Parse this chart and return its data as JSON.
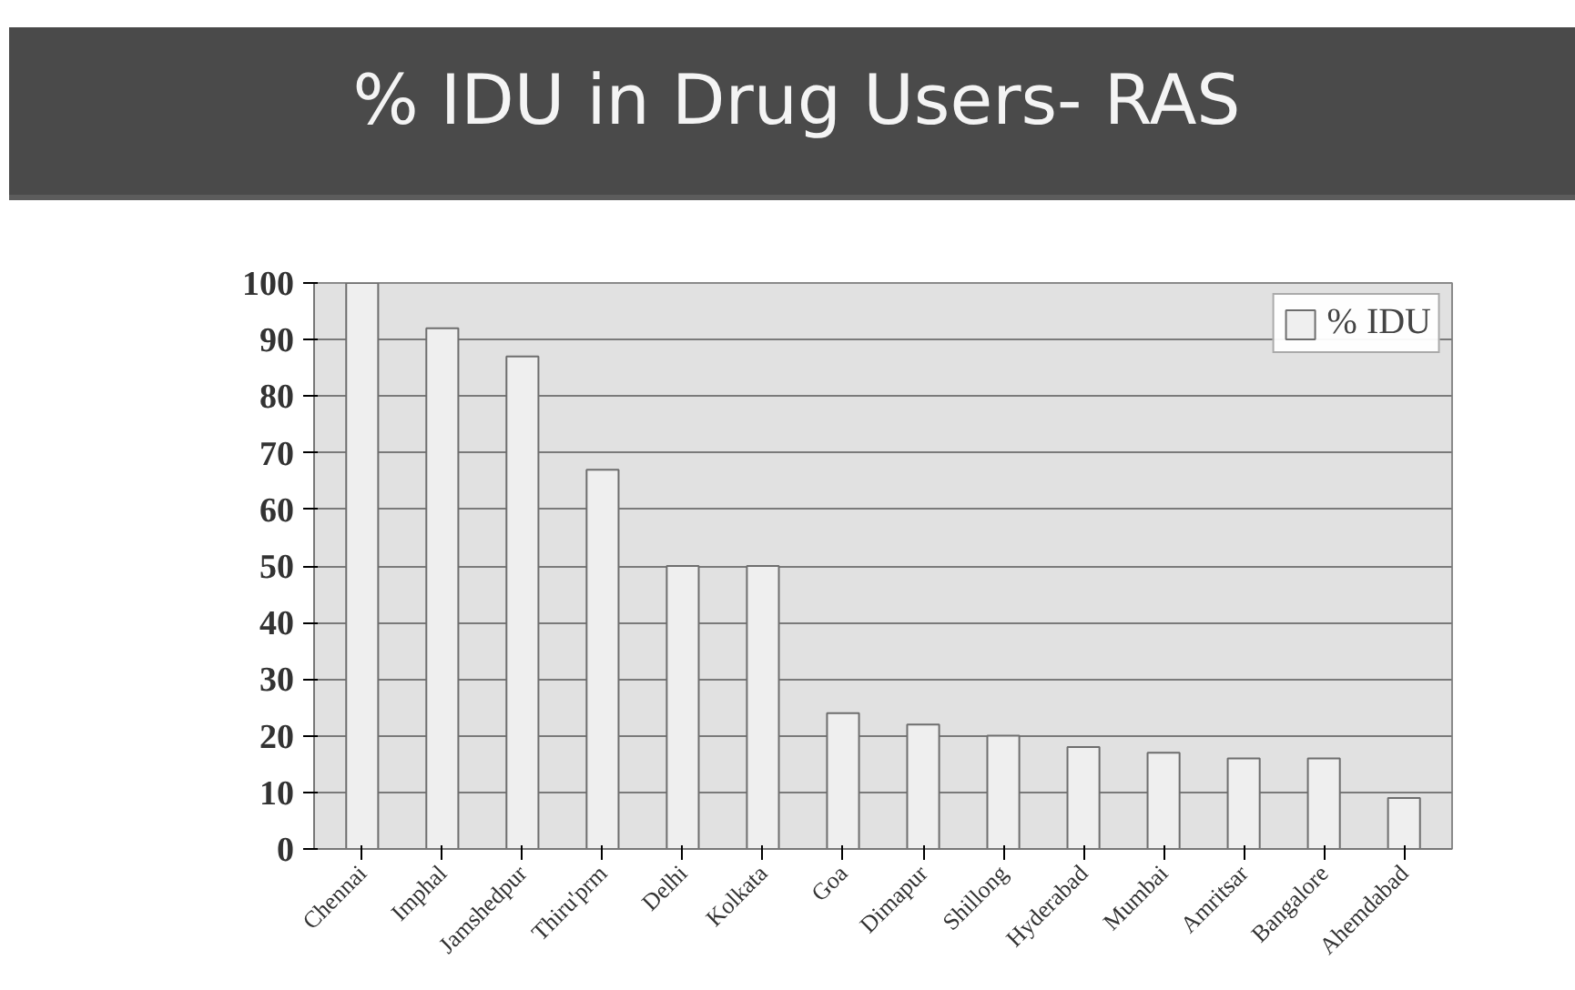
{
  "chart_data": {
    "type": "bar",
    "title": "% IDU in Drug Users- RAS",
    "categories": [
      "Chennai",
      "Imphal",
      "Jamshedpur",
      "Thiru'prm",
      "Delhi",
      "Kolkata",
      "Goa",
      "Dimapur",
      "Shillong",
      "Hyderabad",
      "Mumbai",
      "Amritsar",
      "Bangalore",
      "Ahemdabad"
    ],
    "series": [
      {
        "name": "% IDU",
        "color": "#efefef",
        "values": [
          100,
          92,
          87,
          67,
          50,
          50,
          24,
          22,
          20,
          18,
          17,
          16,
          16,
          9
        ]
      }
    ],
    "ylim": [
      0,
      100
    ],
    "yticks": [
      0,
      10,
      20,
      30,
      40,
      50,
      60,
      70,
      80,
      90,
      100
    ],
    "grid": "y",
    "legend": "top right"
  }
}
